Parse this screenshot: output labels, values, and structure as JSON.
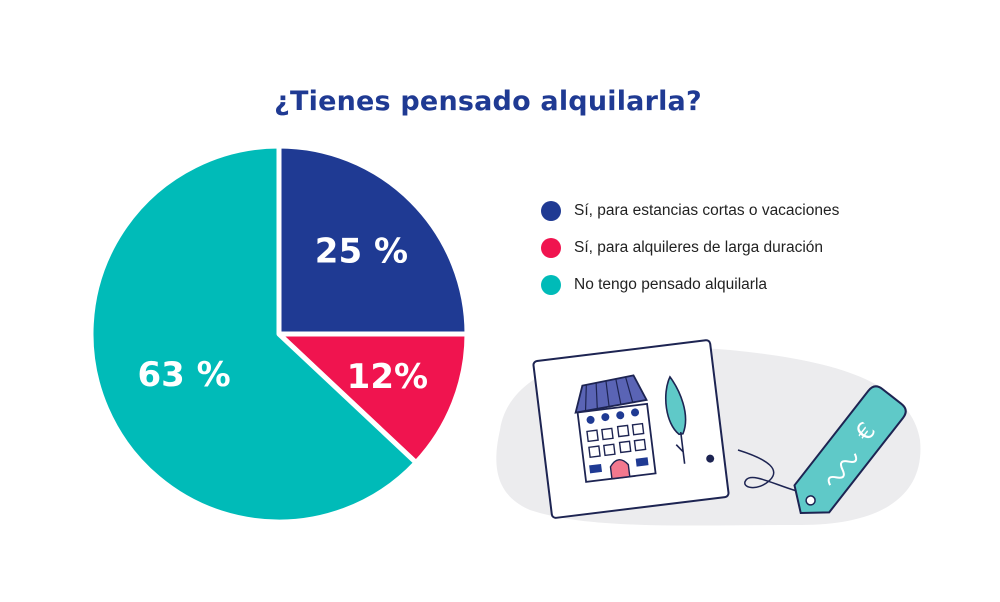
{
  "chart_data": {
    "type": "pie",
    "title": "¿Tienes pensado alquilarla?",
    "slices": [
      {
        "label": "Sí, para estancias cortas o vacaciones",
        "value": 25,
        "display": "25 %",
        "color": "#1f3a93"
      },
      {
        "label": "Sí, para alquileres de larga duración",
        "value": 12,
        "display": "12%",
        "color": "#f0144f"
      },
      {
        "label": "No tengo pensado alquilarla",
        "value": 63,
        "display": "63 %",
        "color": "#00bbb8"
      }
    ],
    "start_angle": "top",
    "direction": "clockwise",
    "legend_position": "right"
  },
  "illustration": {
    "price_tag_symbol": "€"
  }
}
